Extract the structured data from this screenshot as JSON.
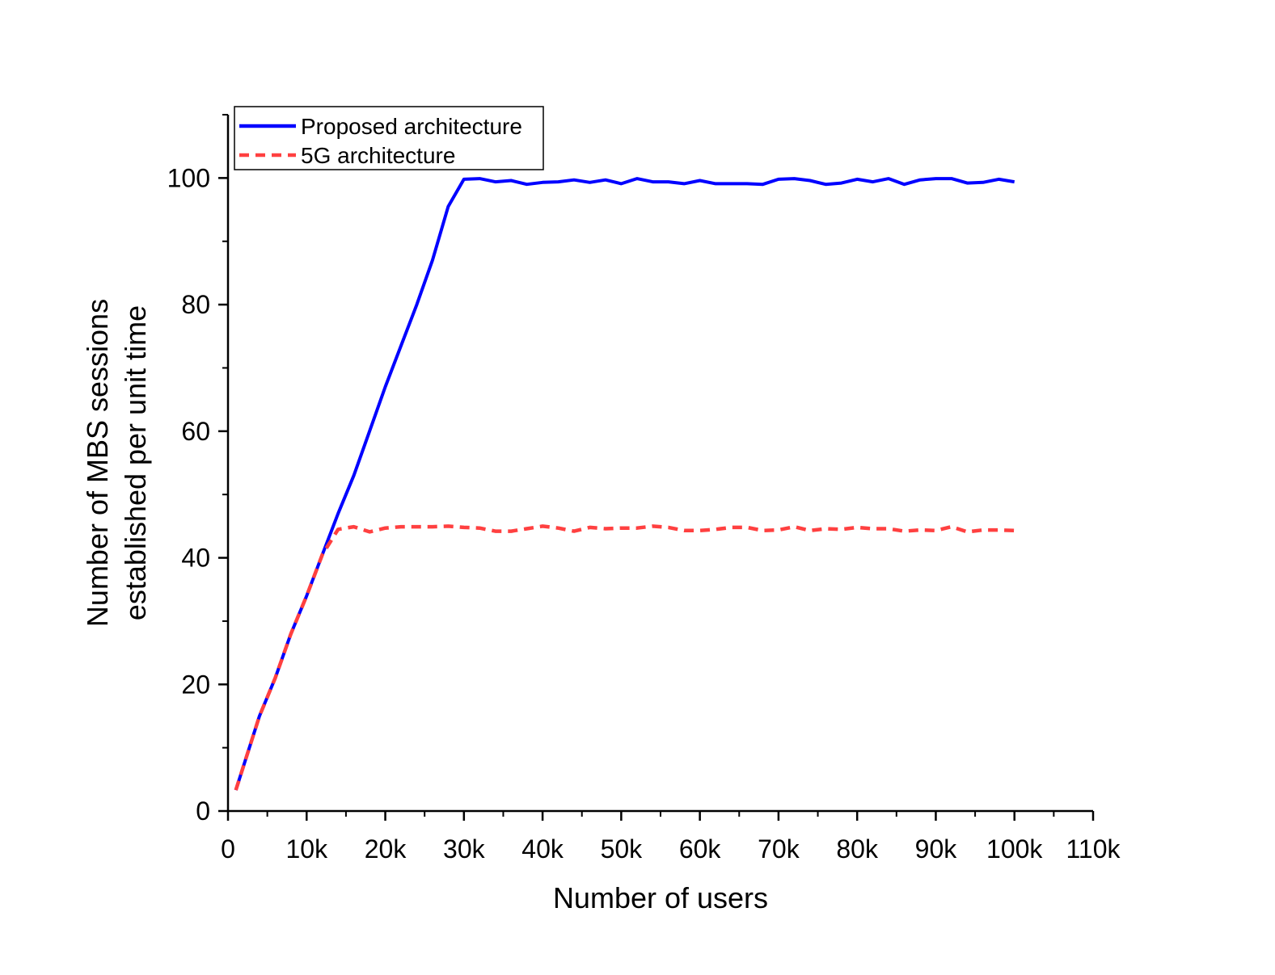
{
  "chart_data": {
    "type": "line",
    "xlabel": "Number of users",
    "ylabel_lines": [
      "Number of MBS sessions",
      "established per unit time"
    ],
    "xlim": [
      0,
      110000
    ],
    "ylim": [
      0,
      110
    ],
    "x_ticks": [
      {
        "value": 0,
        "label": "0"
      },
      {
        "value": 10000,
        "label": "10k"
      },
      {
        "value": 20000,
        "label": "20k"
      },
      {
        "value": 30000,
        "label": "30k"
      },
      {
        "value": 40000,
        "label": "40k"
      },
      {
        "value": 50000,
        "label": "50k"
      },
      {
        "value": 60000,
        "label": "60k"
      },
      {
        "value": 70000,
        "label": "70k"
      },
      {
        "value": 80000,
        "label": "80k"
      },
      {
        "value": 90000,
        "label": "90k"
      },
      {
        "value": 100000,
        "label": "100k"
      },
      {
        "value": 110000,
        "label": "110k"
      }
    ],
    "y_ticks": [
      {
        "value": 0,
        "label": "0"
      },
      {
        "value": 20,
        "label": "20"
      },
      {
        "value": 40,
        "label": "40"
      },
      {
        "value": 60,
        "label": "60"
      },
      {
        "value": 80,
        "label": "80"
      },
      {
        "value": 100,
        "label": "100"
      }
    ],
    "grid": false,
    "legend_position": "top-left",
    "series": [
      {
        "name": "Proposed architecture",
        "color": "#0000ff",
        "style": "solid",
        "x": [
          1000,
          4000,
          6000,
          8000,
          10000,
          12000,
          14000,
          16000,
          18000,
          20000,
          22000,
          24000,
          26000,
          28000,
          30000,
          32000,
          34000,
          36000,
          38000,
          40000,
          42000,
          44000,
          46000,
          48000,
          50000,
          52000,
          54000,
          56000,
          58000,
          60000,
          62000,
          64000,
          66000,
          68000,
          70000,
          72000,
          74000,
          76000,
          78000,
          80000,
          82000,
          84000,
          86000,
          88000,
          90000,
          92000,
          94000,
          96000,
          98000,
          100000
        ],
        "y": [
          3.3,
          15,
          21,
          28,
          34,
          40.5,
          47,
          53,
          60,
          67,
          73.5,
          80,
          87,
          95.5,
          99.8,
          99.9,
          99.4,
          99.6,
          99.0,
          99.3,
          99.4,
          99.7,
          99.3,
          99.7,
          99.1,
          99.9,
          99.4,
          99.4,
          99.1,
          99.6,
          99.1,
          99.1,
          99.1,
          99.0,
          99.8,
          99.9,
          99.6,
          99.0,
          99.2,
          99.8,
          99.4,
          99.9,
          99.0,
          99.7,
          99.9,
          99.9,
          99.2,
          99.3,
          99.8,
          99.4
        ]
      },
      {
        "name": "5G architecture",
        "color": "#ff4040",
        "style": "dashed",
        "x": [
          1000,
          4000,
          6000,
          8000,
          10000,
          12000,
          14000,
          16000,
          18000,
          20000,
          22000,
          24000,
          26000,
          28000,
          30000,
          32000,
          34000,
          36000,
          38000,
          40000,
          42000,
          44000,
          46000,
          48000,
          50000,
          52000,
          54000,
          56000,
          58000,
          60000,
          62000,
          64000,
          66000,
          68000,
          70000,
          72000,
          74000,
          76000,
          78000,
          80000,
          82000,
          84000,
          86000,
          88000,
          90000,
          92000,
          94000,
          96000,
          98000,
          100000
        ],
        "y": [
          3.3,
          15,
          21,
          28,
          34,
          40.5,
          44.5,
          44.9,
          44.1,
          44.7,
          44.9,
          44.9,
          44.9,
          45.0,
          44.8,
          44.7,
          44.2,
          44.2,
          44.6,
          45.0,
          44.7,
          44.2,
          44.8,
          44.6,
          44.7,
          44.7,
          45.0,
          44.8,
          44.3,
          44.3,
          44.5,
          44.8,
          44.8,
          44.3,
          44.4,
          44.9,
          44.3,
          44.6,
          44.5,
          44.8,
          44.6,
          44.6,
          44.2,
          44.4,
          44.3,
          44.9,
          44.1,
          44.4,
          44.4,
          44.3
        ]
      }
    ]
  }
}
